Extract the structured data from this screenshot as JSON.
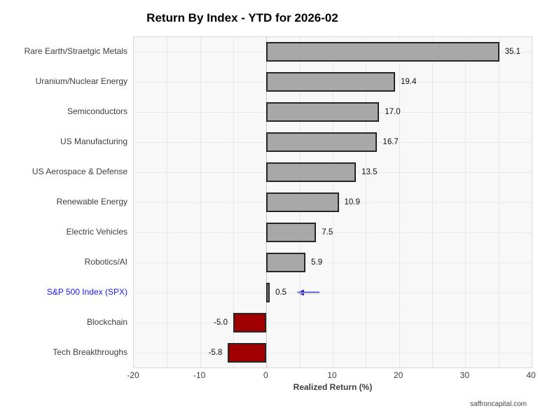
{
  "page": {
    "watermark": "saffroncapital.com"
  },
  "chart_data": {
    "type": "bar",
    "orientation": "horizontal",
    "title": "Return By Index - YTD for 2026-02",
    "xlabel": "Realized Return (%)",
    "ylabel": "",
    "xlim": [
      -20,
      40
    ],
    "x_ticks": [
      "-20",
      "-10",
      "0",
      "10",
      "20",
      "30",
      "40"
    ],
    "x_tick_values": [
      -20,
      -10,
      0,
      10,
      20,
      30,
      40
    ],
    "grid": true,
    "gridline_step": 5,
    "legend": "none",
    "categories": [
      "Rare Earth/Straetgic Metals",
      "Uranium/Nuclear Energy",
      "Semiconductors",
      "US Manufacturing",
      "US Aerospace & Defense",
      "Renewable Energy",
      "Electric Vehicles",
      "Robotics/AI",
      "S&P 500 Index (SPX)",
      "Blockchain",
      "Tech Breakthroughs"
    ],
    "values": [
      35.1,
      19.4,
      17.0,
      16.7,
      13.5,
      10.9,
      7.5,
      5.9,
      0.5,
      -5.0,
      -5.8
    ],
    "value_labels": [
      "35.1",
      "19.4",
      "17.0",
      "16.7",
      "13.5",
      "10.9",
      "7.5",
      "5.9",
      "0.5",
      "-5.0",
      "-5.8"
    ],
    "highlight_category": "S&P 500 Index (SPX)",
    "highlight_label_color": "#1a1aff",
    "positive_bar_color": "#a8a8a8",
    "negative_bar_color": "#a00000",
    "bar_border_color": "#262626",
    "annotation": {
      "type": "arrow-left",
      "target_category": "S&P 500 Index (SPX)",
      "color": "#2b2bd4"
    }
  }
}
